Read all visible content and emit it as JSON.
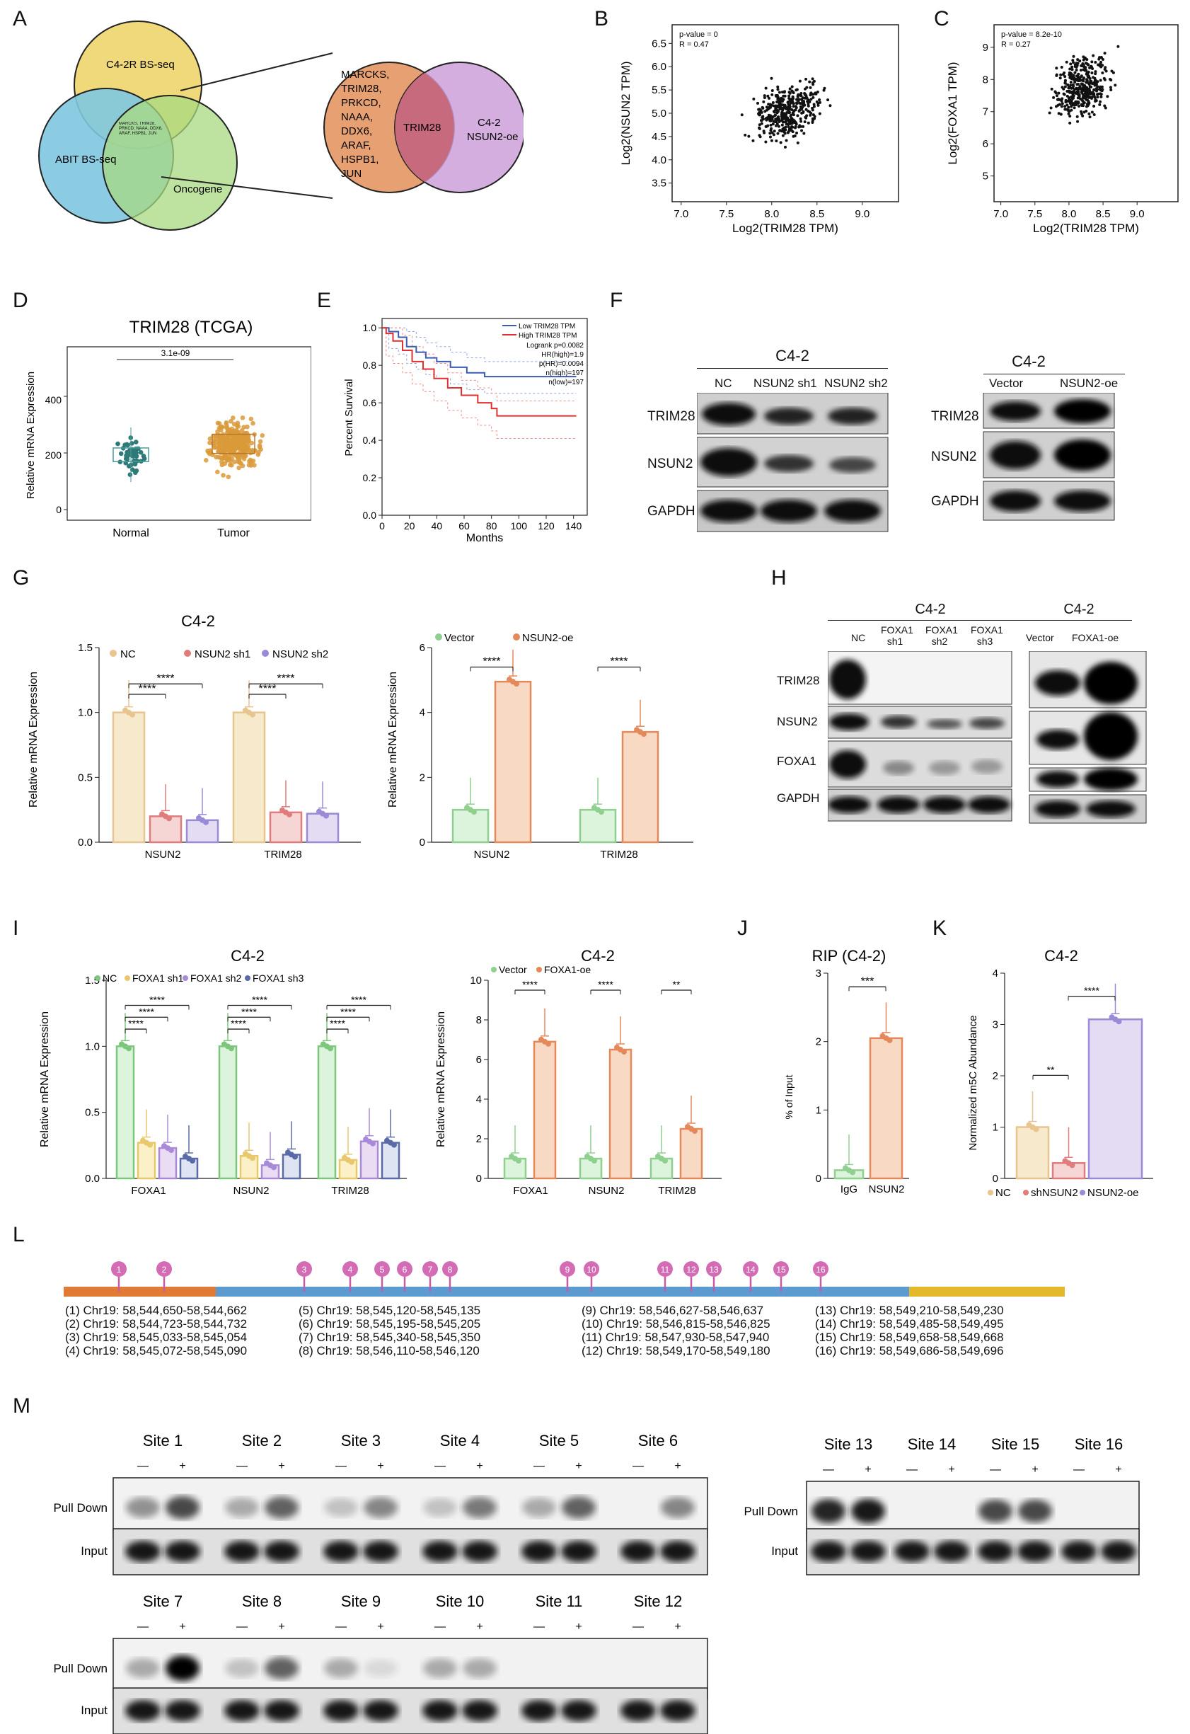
{
  "panels": [
    "A",
    "B",
    "C",
    "D",
    "E",
    "F",
    "G",
    "H",
    "I",
    "J",
    "K",
    "L",
    "M"
  ],
  "A": {
    "circles": [
      "C4-2R BS-seq",
      "ABIT BS-seq",
      "Oncogene"
    ],
    "center_text": "MARCKS, TRIM28, PRKCD, NAAA, DDX6, ARAF, HSPB1, JUN",
    "left_set": [
      "MARCKS,",
      "TRIM28,",
      "PRKCD,",
      "NAAA,",
      "DDX6,",
      "ARAF,",
      "HSPB1,",
      "JUN"
    ],
    "overlap": "TRIM28",
    "right_set": [
      "C4-2",
      "NSUN2-oe"
    ]
  },
  "B": {
    "pvalue": "p-value = 0",
    "R": "R = 0.47",
    "xlabel": "Log2(TRIM28 TPM)",
    "ylabel": "Log2(NSUN2 TPM)",
    "xticks": [
      "7.0",
      "7.5",
      "8.0",
      "8.5",
      "9.0"
    ],
    "yticks": [
      "3.5",
      "4.0",
      "4.5",
      "5.0",
      "5.5",
      "6.0",
      "6.5"
    ]
  },
  "C": {
    "pvalue": "p-value = 8.2e-10",
    "R": "R = 0.27",
    "xlabel": "Log2(TRIM28 TPM)",
    "ylabel": "Log2(FOXA1 TPM)",
    "xticks": [
      "7.0",
      "7.5",
      "8.0",
      "8.5",
      "9.0"
    ],
    "yticks": [
      "5",
      "6",
      "7",
      "8",
      "9"
    ]
  },
  "D": {
    "title": "TRIM28  (TCGA)",
    "pvalue": "3.1e-09",
    "ylabel": "Relative mRNA Expression",
    "yticks": [
      "0",
      "200",
      "400"
    ],
    "groups": [
      "Normal",
      "Tumor"
    ]
  },
  "E": {
    "legend": [
      "Low TRIM28 TPM",
      "High TRIM28 TPM"
    ],
    "stats": [
      "Logrank p=0.0082",
      "HR(high)=1.9",
      "p(HR)=0.0094",
      "n(high)=197",
      "n(low)=197"
    ],
    "ylabel": "Percent Survival",
    "xlabel": "Months",
    "xticks": [
      "0",
      "20",
      "40",
      "60",
      "80",
      "100",
      "120",
      "140"
    ],
    "yticks": [
      "0.0",
      "0.2",
      "0.4",
      "0.6",
      "0.8",
      "1.0"
    ]
  },
  "F": {
    "left_title": "C4-2",
    "left_cols": [
      "NC",
      "NSUN2 sh1",
      "NSUN2 sh2"
    ],
    "right_title": "C4-2",
    "right_cols": [
      "Vector",
      "NSUN2-oe"
    ],
    "rows": [
      "TRIM28",
      "NSUN2",
      "GAPDH"
    ]
  },
  "G": {
    "title": "C4-2",
    "legend_left": [
      "NC",
      "NSUN2 sh1",
      "NSUN2 sh2"
    ],
    "legend_right": [
      "Vector",
      "NSUN2-oe"
    ],
    "ylabel": "Relative mRNA Expression",
    "sig": "****",
    "groups": [
      "NSUN2",
      "TRIM28"
    ],
    "left_yticks": [
      "0.0",
      "0.5",
      "1.0",
      "1.5"
    ],
    "right_yticks": [
      "0",
      "2",
      "4",
      "6"
    ]
  },
  "H": {
    "left_title": "C4-2",
    "left_cols": [
      "NC",
      "FOXA1\nsh1",
      "FOXA1\nsh2",
      "FOXA1\nsh3"
    ],
    "right_title": "C4-2",
    "right_cols": [
      "Vector",
      "FOXA1-oe"
    ],
    "rows": [
      "TRIM28",
      "NSUN2",
      "FOXA1",
      "GAPDH"
    ]
  },
  "I": {
    "left_title": "C4-2",
    "right_title": "C4-2",
    "legend_left": [
      "NC",
      "FOXA1 sh1",
      "FOXA1 sh2",
      "FOXA1 sh3"
    ],
    "legend_right": [
      "Vector",
      "FOXA1-oe"
    ],
    "ylabel": "Relative mRNA Expression",
    "groups": [
      "FOXA1",
      "NSUN2",
      "TRIM28"
    ],
    "sig4": "****",
    "sig2": "**",
    "left_yticks": [
      "0.0",
      "0.5",
      "1.0",
      "1.5"
    ],
    "right_yticks": [
      "0",
      "2",
      "4",
      "6",
      "8",
      "10"
    ]
  },
  "J": {
    "title": "RIP (C4-2)",
    "ylabel": "% of Input",
    "sig": "***",
    "groups": [
      "IgG",
      "NSUN2"
    ],
    "yticks": [
      "0",
      "1",
      "2",
      "3"
    ]
  },
  "K": {
    "title": "C4-2",
    "ylabel": "Normalized m5C Abundance",
    "sig1": "**",
    "sig2": "****",
    "legend": [
      "NC",
      "shNSUN2",
      "NSUN2-oe"
    ],
    "yticks": [
      "0",
      "1",
      "2",
      "3",
      "4"
    ]
  },
  "L": {
    "sites": [
      "1",
      "2",
      "3",
      "4",
      "5",
      "6",
      "7",
      "8",
      "9",
      "10",
      "11",
      "12",
      "13",
      "14",
      "15",
      "16"
    ],
    "coords": [
      "(1) Chr19: 58,544,650-58,544,662",
      "(2) Chr19: 58,544,723-58,544,732",
      "(3) Chr19: 58,545,033-58,545,054",
      "(4) Chr19: 58,545,072-58,545,090",
      "(5) Chr19: 58,545,120-58,545,135",
      "(6) Chr19: 58,545,195-58,545,205",
      "(7) Chr19: 58,545,340-58,545,350",
      "(8) Chr19: 58,546,110-58,546,120",
      "(9) Chr19: 58,546,627-58,546,637",
      "(10) Chr19: 58,546,815-58,546,825",
      "(11) Chr19: 58,547,930-58,547,940",
      "(12) Chr19: 58,549,170-58,549,180",
      "(13) Chr19: 58,549,210-58,549,230",
      "(14) Chr19: 58,549,485-58,549,495",
      "(15) Chr19: 58,549,658-58,549,668",
      "(16) Chr19: 58,549,686-58,549,696"
    ]
  },
  "M": {
    "top_sites": [
      "Site 1",
      "Site 2",
      "Site 3",
      "Site 4",
      "Site 5",
      "Site 6"
    ],
    "right_sites": [
      "Site 13",
      "Site 14",
      "Site 15",
      "Site 16"
    ],
    "bottom_sites": [
      "Site 7",
      "Site 8",
      "Site 9",
      "Site 10",
      "Site 11",
      "Site 12"
    ],
    "minus": "—",
    "plus": "+",
    "rows": [
      "Pull Down",
      "Input"
    ]
  }
}
